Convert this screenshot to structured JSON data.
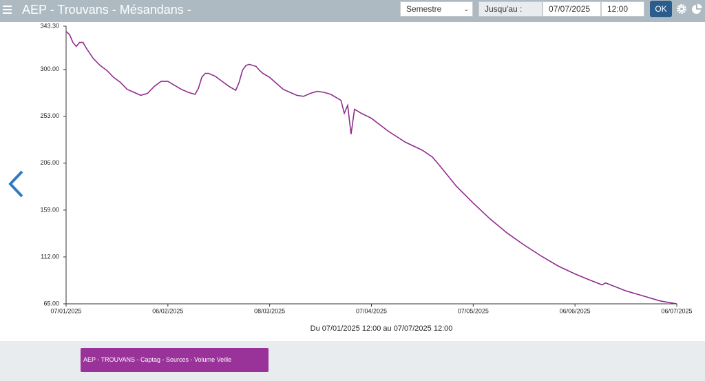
{
  "header": {
    "title": "AEP - Trouvans - Mésandans -",
    "period": "Semestre",
    "until_label": "Jusqu'au :",
    "date": "07/07/2025",
    "time": "12:00",
    "ok": "OK"
  },
  "chart_data": {
    "type": "line",
    "subtitle": "Du 07/01/2025 12:00 au 07/07/2025 12:00",
    "x": [
      "07/01/2025",
      "08/01/2025",
      "09/01/2025",
      "10/01/2025",
      "11/01/2025",
      "12/01/2025",
      "13/01/2025",
      "15/01/2025",
      "17/01/2025",
      "19/01/2025",
      "21/01/2025",
      "23/01/2025",
      "25/01/2025",
      "27/01/2025",
      "29/01/2025",
      "31/01/2025",
      "02/02/2025",
      "04/02/2025",
      "06/02/2025",
      "08/02/2025",
      "10/02/2025",
      "12/02/2025",
      "14/02/2025",
      "15/02/2025",
      "16/02/2025",
      "17/02/2025",
      "18/02/2025",
      "20/02/2025",
      "22/02/2025",
      "24/02/2025",
      "26/02/2025",
      "27/02/2025",
      "28/02/2025",
      "01/03/2025",
      "02/03/2025",
      "04/03/2025",
      "05/03/2025",
      "06/03/2025",
      "08/03/2025",
      "10/03/2025",
      "12/03/2025",
      "14/03/2025",
      "16/03/2025",
      "18/03/2025",
      "20/03/2025",
      "22/03/2025",
      "24/03/2025",
      "26/03/2025",
      "28/03/2025",
      "29/03/2025",
      "30/03/2025",
      "31/03/2025",
      "01/04/2025",
      "02/04/2025",
      "04/04/2025",
      "07/04/2025",
      "12/04/2025",
      "17/04/2025",
      "22/04/2025",
      "25/04/2025",
      "27/04/2025",
      "02/05/2025",
      "07/05/2025",
      "12/05/2025",
      "17/05/2025",
      "22/05/2025",
      "27/05/2025",
      "01/06/2025",
      "06/06/2025",
      "11/06/2025",
      "14/06/2025",
      "15/06/2025",
      "18/06/2025",
      "21/06/2025",
      "26/06/2025",
      "01/07/2025",
      "06/07/2025"
    ],
    "series": [
      {
        "name": "AEP - TROUVANS - Captag - Sources - Volume Veille",
        "color": "#8e2c8e",
        "values": [
          338,
          335,
          327,
          323,
          327,
          327,
          321,
          311,
          304,
          299,
          292,
          287,
          280,
          277,
          274,
          276,
          283,
          288,
          288,
          284,
          280,
          277,
          275,
          281,
          292,
          296,
          296,
          293,
          288,
          283,
          279,
          287,
          299,
          304,
          305,
          303,
          299,
          296,
          292,
          286,
          280,
          277,
          274,
          273,
          276,
          278,
          277,
          275,
          271,
          269,
          256,
          264,
          235,
          260,
          256,
          251,
          238,
          227,
          219,
          212,
          204,
          183,
          166,
          150,
          136,
          124,
          113,
          103,
          95,
          88,
          84,
          86,
          82,
          78,
          73,
          68,
          65
        ]
      }
    ],
    "xlim": [
      "07/01/2025",
      "06/07/2025"
    ],
    "xticks": [
      "07/01/2025",
      "06/02/2025",
      "08/03/2025",
      "07/04/2025",
      "07/05/2025",
      "06/06/2025",
      "06/07/2025"
    ],
    "ylim": [
      65,
      343.3
    ],
    "yticks": [
      {
        "value": 65,
        "label": "65.00"
      },
      {
        "value": 112,
        "label": "112.00"
      },
      {
        "value": 159,
        "label": "159.00"
      },
      {
        "value": 206,
        "label": "206.00"
      },
      {
        "value": 253,
        "label": "253.00"
      },
      {
        "value": 300,
        "label": "300.00"
      },
      {
        "value": 343.3,
        "label": "343.30"
      }
    ]
  }
}
